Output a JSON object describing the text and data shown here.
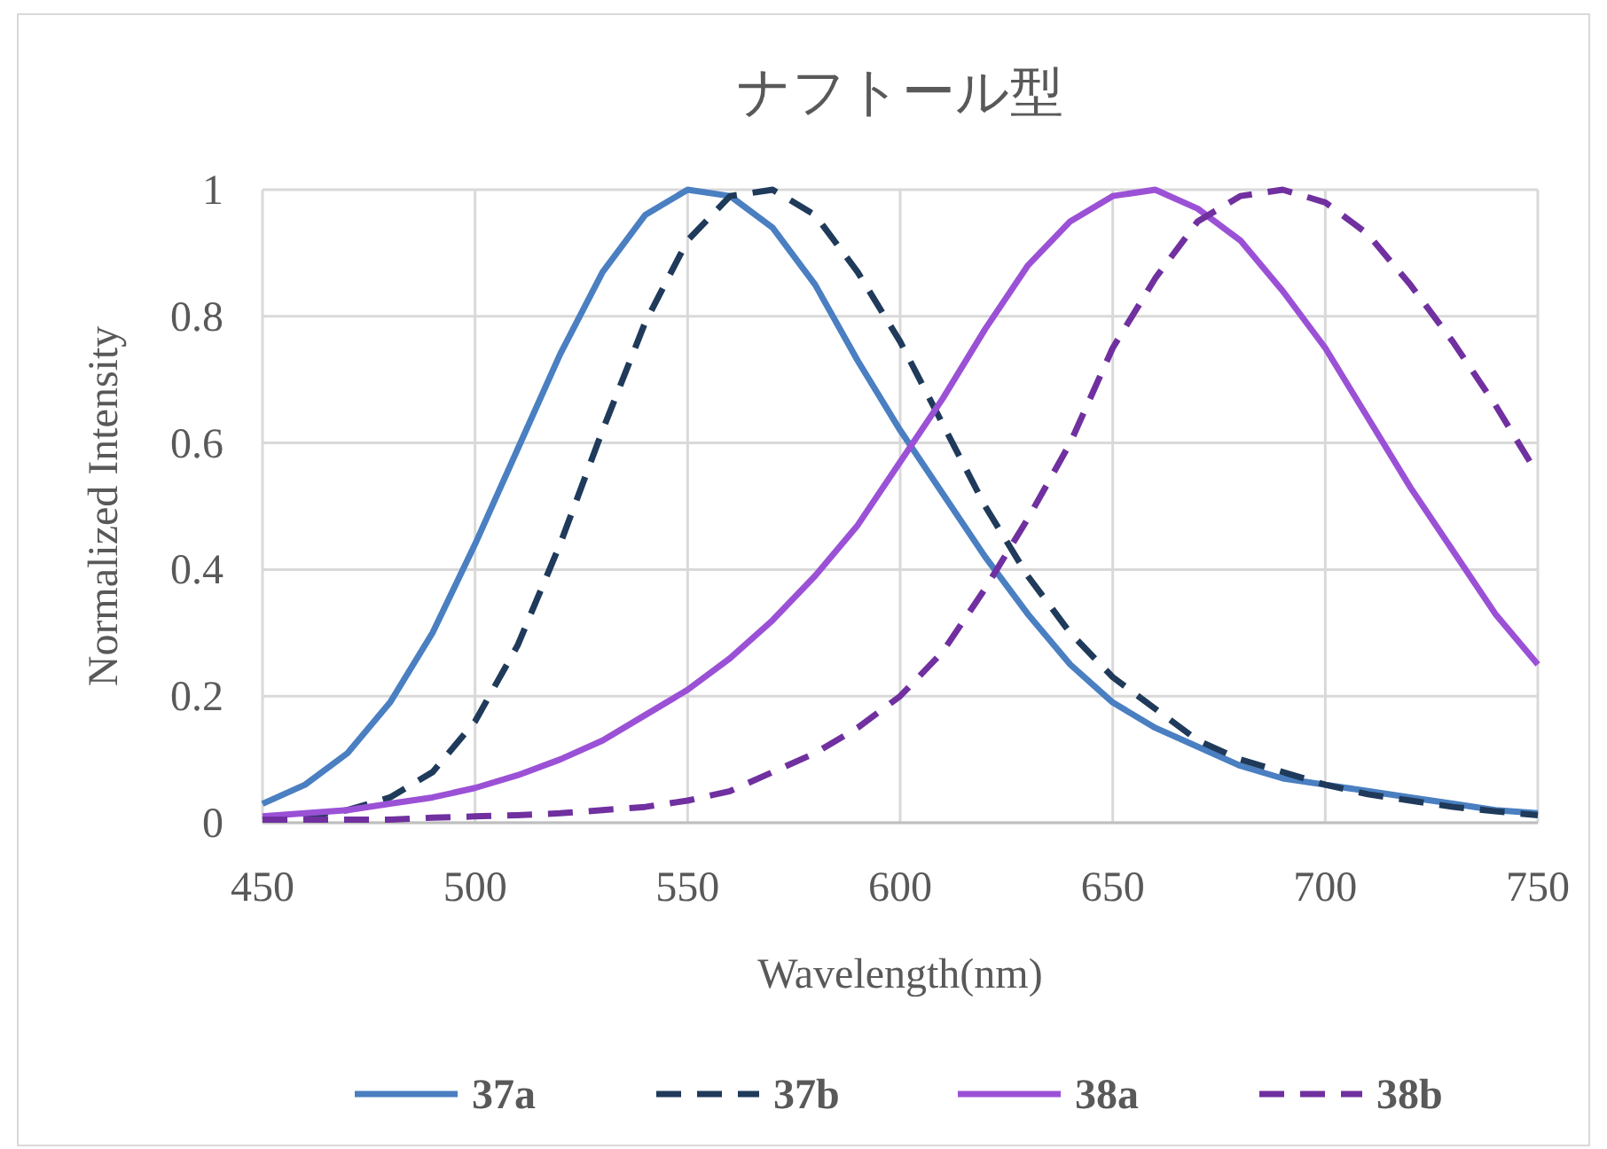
{
  "chart_data": {
    "type": "line",
    "title": "ナフトール型",
    "xlabel": "Wavelength(nm)",
    "ylabel": "Normalized Intensity",
    "x": [
      450,
      460,
      470,
      480,
      490,
      500,
      510,
      520,
      530,
      540,
      550,
      560,
      570,
      580,
      590,
      600,
      610,
      620,
      630,
      640,
      650,
      660,
      670,
      680,
      690,
      700,
      710,
      720,
      730,
      740,
      750
    ],
    "xlim": [
      450,
      750
    ],
    "xticks": [
      450,
      500,
      550,
      600,
      650,
      700,
      750
    ],
    "ylim": [
      0,
      1
    ],
    "yticks": [
      0,
      0.2,
      0.4,
      0.6,
      0.8,
      1
    ],
    "grid": true,
    "legend": "bottom",
    "series": [
      {
        "name": "37a",
        "color": "#4a7fc1",
        "line_style": "solid",
        "values": [
          0.03,
          0.06,
          0.11,
          0.19,
          0.3,
          0.44,
          0.59,
          0.74,
          0.87,
          0.96,
          1.0,
          0.99,
          0.94,
          0.85,
          0.73,
          0.62,
          0.52,
          0.42,
          0.33,
          0.25,
          0.19,
          0.15,
          0.12,
          0.09,
          0.07,
          0.06,
          0.05,
          0.04,
          0.03,
          0.02,
          0.015
        ]
      },
      {
        "name": "37b",
        "color": "#1f3a5a",
        "line_style": "dashed",
        "values": [
          0.005,
          0.01,
          0.02,
          0.04,
          0.08,
          0.16,
          0.28,
          0.44,
          0.62,
          0.79,
          0.92,
          0.99,
          1.0,
          0.96,
          0.87,
          0.76,
          0.63,
          0.5,
          0.39,
          0.3,
          0.23,
          0.18,
          0.13,
          0.1,
          0.08,
          0.06,
          0.045,
          0.035,
          0.025,
          0.018,
          0.012
        ]
      },
      {
        "name": "38a",
        "color": "#9b51d6",
        "line_style": "solid",
        "values": [
          0.01,
          0.015,
          0.02,
          0.03,
          0.04,
          0.055,
          0.075,
          0.1,
          0.13,
          0.17,
          0.21,
          0.26,
          0.32,
          0.39,
          0.47,
          0.57,
          0.67,
          0.78,
          0.88,
          0.95,
          0.99,
          1.0,
          0.97,
          0.92,
          0.84,
          0.75,
          0.64,
          0.53,
          0.43,
          0.33,
          0.25
        ]
      },
      {
        "name": "38b",
        "color": "#7030a0",
        "line_style": "dashed",
        "values": [
          0.005,
          0.005,
          0.005,
          0.005,
          0.008,
          0.01,
          0.012,
          0.015,
          0.02,
          0.025,
          0.035,
          0.05,
          0.08,
          0.11,
          0.15,
          0.2,
          0.27,
          0.37,
          0.48,
          0.6,
          0.75,
          0.86,
          0.95,
          0.99,
          1.0,
          0.98,
          0.93,
          0.85,
          0.76,
          0.66,
          0.55
        ]
      }
    ]
  }
}
